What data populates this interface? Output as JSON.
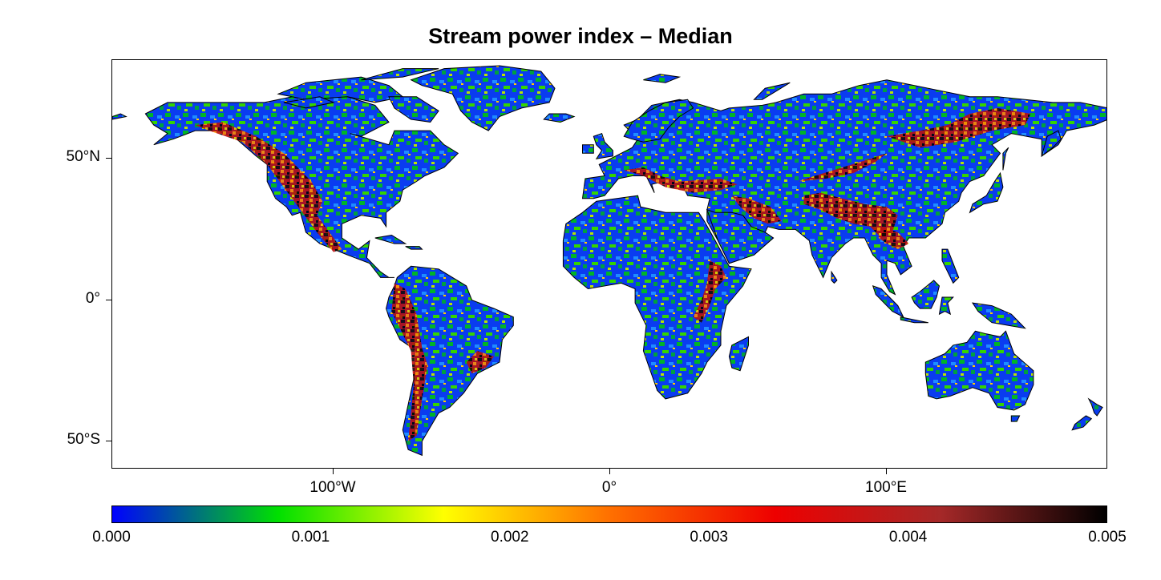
{
  "title": "Stream power index – Median",
  "map": {
    "projection": "equirectangular",
    "longitude_range": [
      -180,
      180
    ],
    "latitude_range": [
      -60,
      85
    ],
    "y_ticks": [
      {
        "label": "50°N",
        "lat": 50
      },
      {
        "label": "0°",
        "lat": 0
      },
      {
        "label": "50°S",
        "lat": -50
      }
    ],
    "x_ticks": [
      {
        "label": "100°W",
        "lon": -100
      },
      {
        "label": "0°",
        "lon": 0
      },
      {
        "label": "100°E",
        "lon": 100
      }
    ],
    "land_fill_colors": [
      "#0a2ee8",
      "#00c41e",
      "#7fe000",
      "#e8e800",
      "#ff7a00",
      "#e00000",
      "#3a0a0a"
    ],
    "ocean_color": "#ffffff"
  },
  "colorbar": {
    "min": 0.0,
    "max": 0.005,
    "tick_labels": [
      "0.000",
      "0.001",
      "0.002",
      "0.003",
      "0.004",
      "0.005"
    ],
    "tick_values": [
      0.0,
      0.001,
      0.002,
      0.003,
      0.004,
      0.005
    ],
    "color_stops": [
      "#0000ff",
      "#00e000",
      "#ffff00",
      "#ff7000",
      "#ee0000",
      "#a52828",
      "#000000"
    ]
  }
}
